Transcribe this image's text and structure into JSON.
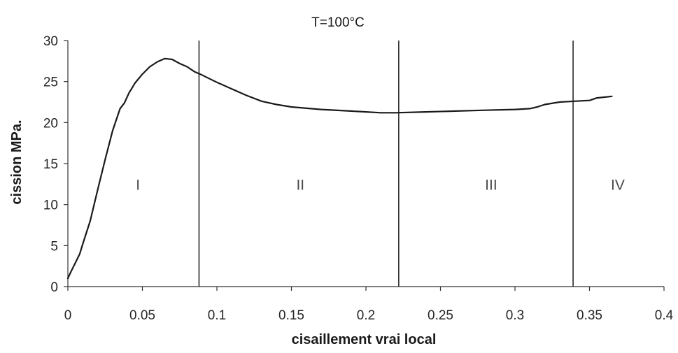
{
  "chart_data": {
    "type": "line",
    "title": "T=100°C",
    "xlabel": "cisaillement vrai local",
    "ylabel": "cission MPa.",
    "xlim": [
      0,
      0.4
    ],
    "ylim": [
      0,
      30
    ],
    "x_ticks": [
      "0",
      "0.05",
      "0.1",
      "0.15",
      "0.2",
      "0.25",
      "0.3",
      "0.35",
      "0.4"
    ],
    "y_ticks": [
      "0",
      "5",
      "10",
      "15",
      "20",
      "25",
      "30"
    ],
    "grid": false,
    "series": [
      {
        "x": [
          0,
          0.002,
          0.005,
          0.008,
          0.01,
          0.015,
          0.02,
          0.025,
          0.03,
          0.035,
          0.038,
          0.041,
          0.043,
          0.045,
          0.05,
          0.055,
          0.06,
          0.065,
          0.07,
          0.075,
          0.08,
          0.085,
          0.09,
          0.1,
          0.11,
          0.12,
          0.13,
          0.14,
          0.15,
          0.17,
          0.19,
          0.21,
          0.22,
          0.24,
          0.26,
          0.28,
          0.3,
          0.31,
          0.315,
          0.32,
          0.33,
          0.34,
          0.35,
          0.355,
          0.36,
          0.365
        ],
        "values": [
          1.0,
          1.8,
          2.9,
          4.0,
          5.2,
          8.0,
          11.8,
          15.5,
          19.0,
          21.7,
          22.4,
          23.6,
          24.2,
          24.8,
          25.9,
          26.8,
          27.4,
          27.8,
          27.7,
          27.2,
          26.8,
          26.2,
          25.8,
          24.9,
          24.1,
          23.3,
          22.6,
          22.2,
          21.9,
          21.6,
          21.4,
          21.2,
          21.2,
          21.3,
          21.4,
          21.5,
          21.6,
          21.7,
          21.9,
          22.2,
          22.5,
          22.6,
          22.7,
          23.0,
          23.1,
          23.2
        ]
      }
    ],
    "color": "#1a1a1a",
    "region_boundaries": [
      0.088,
      0.222,
      0.339
    ],
    "regions": [
      {
        "label": "I",
        "x": 0.047,
        "y": 12.5
      },
      {
        "label": "II",
        "x": 0.156,
        "y": 12.5
      },
      {
        "label": "III",
        "x": 0.284,
        "y": 12.5
      },
      {
        "label": "IV",
        "x": 0.369,
        "y": 12.5
      }
    ]
  }
}
